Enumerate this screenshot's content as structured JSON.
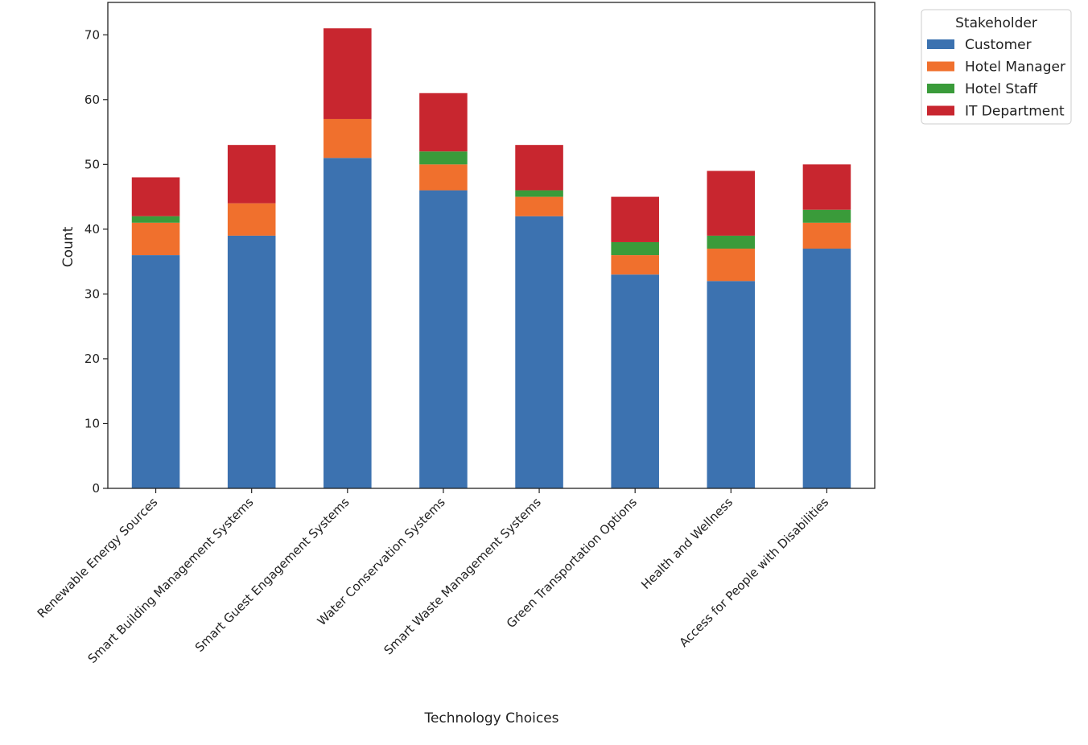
{
  "chart_data": {
    "type": "bar",
    "stacked": true,
    "title": "",
    "xlabel": "Technology Choices",
    "ylabel": "Count",
    "ylim": [
      0,
      75
    ],
    "yticks": [
      0,
      10,
      20,
      30,
      40,
      50,
      60,
      70
    ],
    "grid": false,
    "legend": {
      "title": "Stakeholder",
      "placement": "outside-top-right"
    },
    "categories": [
      "Renewable Energy Sources",
      "Smart Building Management Systems",
      "Smart Guest Engagement Systems",
      "Water Conservation Systems",
      "Smart Waste Management Systems",
      "Green Transportation Options",
      "Health and Wellness",
      "Access for People with Disabilities"
    ],
    "series": [
      {
        "name": "Customer",
        "color": "#3c72b0",
        "values": [
          36,
          39,
          51,
          46,
          42,
          33,
          32,
          37
        ]
      },
      {
        "name": "Hotel Manager",
        "color": "#f0702d",
        "values": [
          5,
          5,
          6,
          4,
          3,
          3,
          5,
          4
        ]
      },
      {
        "name": "Hotel Staff",
        "color": "#3a9b3a",
        "values": [
          1,
          0,
          0,
          2,
          1,
          2,
          2,
          2
        ]
      },
      {
        "name": "IT Department",
        "color": "#c8262f",
        "values": [
          6,
          9,
          14,
          9,
          7,
          7,
          10,
          7
        ]
      }
    ]
  }
}
